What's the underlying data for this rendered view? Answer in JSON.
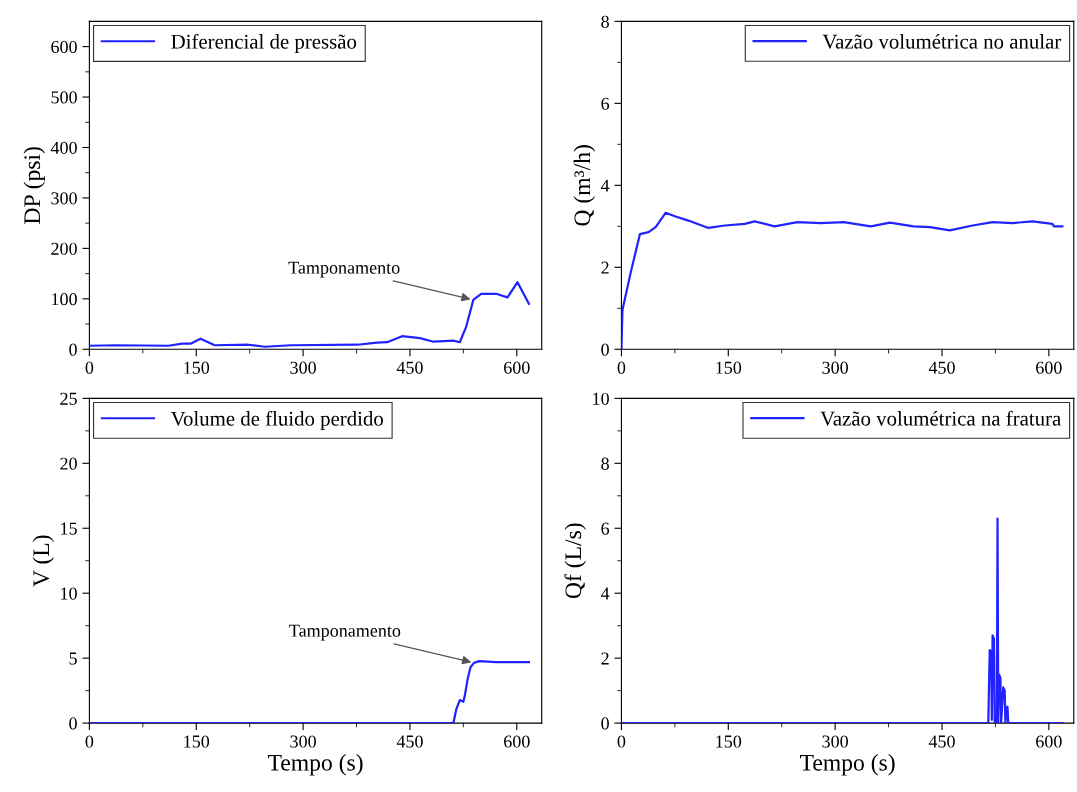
{
  "chart_data": [
    {
      "type": "line",
      "ylabel": "DP (psi)",
      "xlim": [
        0,
        635
      ],
      "ylim": [
        0,
        650
      ],
      "xticks": [
        0,
        {
          "value": 75,
          "label": null
        },
        150,
        {
          "value": 225,
          "label": null
        },
        300,
        {
          "value": 375,
          "label": null
        },
        450,
        {
          "value": 525,
          "label": null
        },
        600
      ],
      "yticks": [
        0,
        {
          "value": 50,
          "label": null
        },
        100,
        {
          "value": 150,
          "label": null
        },
        200,
        {
          "value": 250,
          "label": null
        },
        300,
        {
          "value": 350,
          "label": null
        },
        400,
        {
          "value": 450,
          "label": null
        },
        500,
        {
          "value": 550,
          "label": null
        },
        600
      ],
      "legend": "top left",
      "annotations": [
        {
          "text": "Tamponamento",
          "x": 539,
          "y": 98
        }
      ],
      "x": [
        0,
        37,
        111,
        130,
        142,
        156,
        176,
        223,
        246,
        283,
        376,
        404,
        418,
        439,
        464,
        483,
        511,
        520,
        529,
        539,
        550,
        571,
        587,
        601,
        617
      ],
      "series": [
        {
          "name": "Diferencial de pressão",
          "color": "#2222ff",
          "values": [
            7,
            8,
            7,
            11,
            11,
            21,
            8,
            9,
            5,
            8,
            9,
            13,
            14,
            26,
            22,
            15,
            17,
            14,
            45,
            98,
            110,
            110,
            103,
            133,
            90
          ]
        }
      ]
    },
    {
      "type": "line",
      "ylabel": "Q (m³/h)",
      "xlim": [
        0,
        635
      ],
      "ylim": [
        0,
        8
      ],
      "xticks": [
        0,
        {
          "value": 75,
          "label": null
        },
        150,
        {
          "value": 225,
          "label": null
        },
        300,
        {
          "value": 375,
          "label": null
        },
        450,
        {
          "value": 525,
          "label": null
        },
        600
      ],
      "yticks": [
        0,
        {
          "value": 1,
          "label": null
        },
        2,
        {
          "value": 3,
          "label": null
        },
        4,
        {
          "value": 5,
          "label": null
        },
        6,
        {
          "value": 7,
          "label": null
        },
        8
      ],
      "legend": "top right",
      "x": [
        0,
        1.4,
        13,
        26,
        38,
        48,
        62,
        76,
        94,
        122,
        145,
        173,
        187,
        215,
        247,
        280,
        312,
        350,
        377,
        410,
        433,
        461,
        493,
        521,
        549,
        577,
        605,
        607,
        619
      ],
      "series": [
        {
          "name": "Vazão volumétrica no anular",
          "color": "#2222ff",
          "values": [
            0,
            0.96,
            1.87,
            2.81,
            2.86,
            2.98,
            3.33,
            3.24,
            3.14,
            2.96,
            3.02,
            3.06,
            3.12,
            3.0,
            3.1,
            3.08,
            3.1,
            3.0,
            3.09,
            3.0,
            2.98,
            2.9,
            3.02,
            3.1,
            3.08,
            3.12,
            3.06,
            3.0,
            3.0
          ]
        }
      ]
    },
    {
      "type": "line",
      "xlabel": "Tempo (s)",
      "ylabel": "V (L)",
      "xlim": [
        0,
        635
      ],
      "ylim": [
        0,
        25
      ],
      "xticks": [
        0,
        {
          "value": 75,
          "label": null
        },
        150,
        {
          "value": 225,
          "label": null
        },
        300,
        {
          "value": 375,
          "label": null
        },
        450,
        {
          "value": 525,
          "label": null
        },
        600
      ],
      "yticks": [
        0,
        {
          "value": 2.5,
          "label": null
        },
        5,
        {
          "value": 7.5,
          "label": null
        },
        10,
        {
          "value": 12.5,
          "label": null
        },
        15,
        {
          "value": 17.5,
          "label": null
        },
        20,
        {
          "value": 22.5,
          "label": null
        },
        25
      ],
      "legend": "top left",
      "annotations": [
        {
          "text": "Tamponamento",
          "x": 540,
          "y": 4.64
        }
      ],
      "x": [
        0,
        505,
        511,
        515,
        520,
        525,
        527,
        531,
        535,
        540,
        547,
        571,
        617
      ],
      "series": [
        {
          "name": "Volume de fluido perdido",
          "color": "#2222ff",
          "values": [
            0,
            0,
            0,
            1.05,
            1.77,
            1.64,
            2.1,
            3.4,
            4.3,
            4.64,
            4.77,
            4.7,
            4.7
          ]
        }
      ]
    },
    {
      "type": "line",
      "xlabel": "Tempo (s)",
      "ylabel": "Qf (L/s)",
      "xlim": [
        0,
        635
      ],
      "ylim": [
        0,
        10
      ],
      "xticks": [
        0,
        {
          "value": 75,
          "label": null
        },
        150,
        {
          "value": 225,
          "label": null
        },
        300,
        {
          "value": 375,
          "label": null
        },
        450,
        {
          "value": 525,
          "label": null
        },
        600
      ],
      "yticks": [
        0,
        {
          "value": 1,
          "label": null
        },
        2,
        {
          "value": 3,
          "label": null
        },
        4,
        {
          "value": 5,
          "label": null
        },
        6,
        {
          "value": 7,
          "label": null
        },
        8,
        {
          "value": 9,
          "label": null
        },
        10
      ],
      "legend": "top right",
      "x": [
        0,
        515,
        517,
        519,
        520,
        521,
        523,
        524,
        527,
        528,
        529,
        530,
        532,
        533,
        536,
        538,
        539,
        541,
        542,
        543,
        620
      ],
      "series": [
        {
          "name": "Vazão volumétrica na fratura",
          "color": "#2222ff",
          "values": [
            0,
            0,
            2.25,
            2.2,
            0.1,
            2.7,
            2.6,
            0,
            0,
            6.3,
            0,
            1.5,
            1.4,
            0,
            1.1,
            1.0,
            0,
            0.5,
            0.5,
            0,
            0
          ]
        }
      ]
    }
  ]
}
